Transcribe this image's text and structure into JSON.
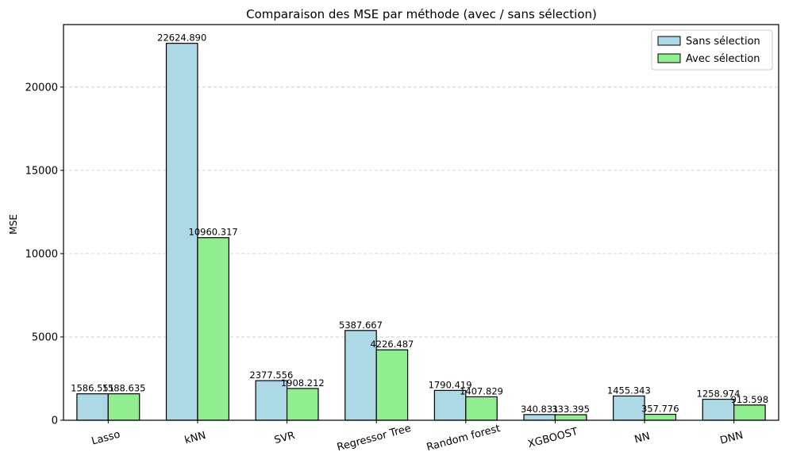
{
  "chart_data": {
    "type": "bar",
    "title": "Comparaison des MSE par méthode (avec / sans sélection)",
    "xlabel": "",
    "ylabel": "MSE",
    "ylim": [
      0,
      23750
    ],
    "yticks": [
      0,
      5000,
      10000,
      15000,
      20000
    ],
    "grid": "y-dashed",
    "legend_position": "top-right",
    "categories": [
      "Lasso",
      "kNN",
      "SVR",
      "Regressor Tree",
      "Random forest",
      "XGBOOST",
      "NN",
      "DNN"
    ],
    "series": [
      {
        "name": "Sans sélection",
        "color": "#add8e6",
        "values": [
          1586.551,
          22624.89,
          2377.556,
          5387.667,
          1790.419,
          340.831,
          1455.343,
          1258.974
        ],
        "labels": [
          "1586.551",
          "22624.890",
          "2377.556",
          "5387.667",
          "1790.419",
          "340.831",
          "1455.343",
          "1258.974"
        ]
      },
      {
        "name": "Avec sélection",
        "color": "#90ee90",
        "values": [
          1588.635,
          10960.317,
          1908.212,
          4226.487,
          1407.829,
          333.395,
          357.776,
          913.598
        ],
        "labels": [
          "1588.635",
          "10960.317",
          "1908.212",
          "4226.487",
          "1407.829",
          "333.395",
          "357.776",
          "913.598"
        ]
      }
    ]
  }
}
